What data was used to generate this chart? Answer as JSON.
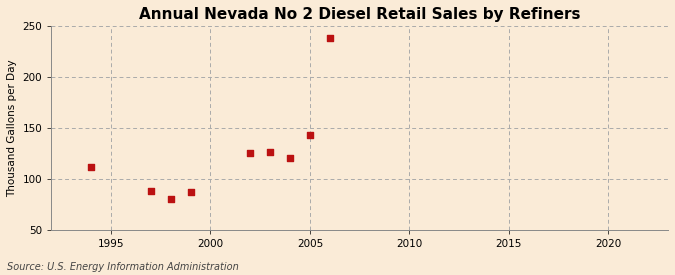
{
  "title": "Annual Nevada No 2 Diesel Retail Sales by Refiners",
  "ylabel": "Thousand Gallons per Day",
  "source": "Source: U.S. Energy Information Administration",
  "background_color": "#faebd7",
  "x_data": [
    1994,
    1997,
    1998,
    1999,
    2002,
    2003,
    2004,
    2005,
    2006
  ],
  "y_data": [
    112,
    88,
    80,
    87,
    125,
    126,
    120,
    143,
    238
  ],
  "marker_color": "#bb1111",
  "marker_size": 18,
  "xlim": [
    1992,
    2023
  ],
  "ylim": [
    50,
    250
  ],
  "xticks": [
    1995,
    2000,
    2005,
    2010,
    2015,
    2020
  ],
  "yticks": [
    50,
    100,
    150,
    200,
    250
  ],
  "grid_color": "#aaaaaa",
  "title_fontsize": 11,
  "label_fontsize": 7.5,
  "tick_fontsize": 7.5,
  "source_fontsize": 7
}
